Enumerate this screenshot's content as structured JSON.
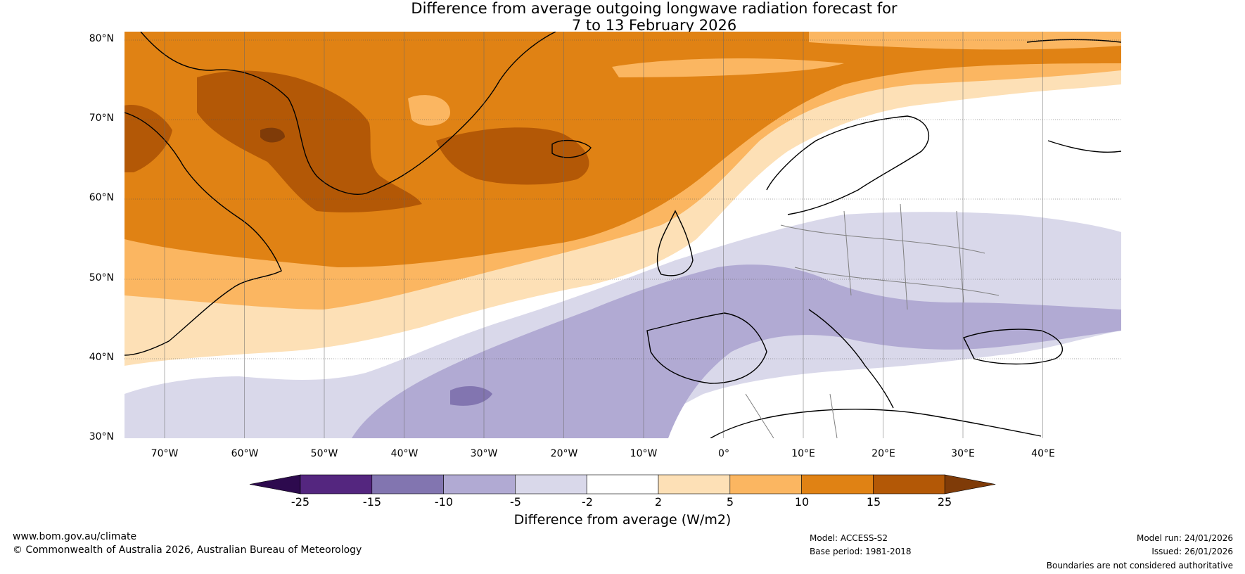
{
  "title": {
    "line1": "Difference from average outgoing longwave radiation forecast for",
    "line2": "7 to 13 February 2026"
  },
  "lat_labels": [
    "80°N",
    "70°N",
    "60°N",
    "50°N",
    "40°N",
    "30°N"
  ],
  "lon_labels": [
    "70°W",
    "60°W",
    "50°W",
    "40°W",
    "30°W",
    "20°W",
    "10°W",
    "0°",
    "10°E",
    "20°E",
    "30°E",
    "40°E"
  ],
  "colorbar": {
    "ticks": [
      "-25",
      "-15",
      "-10",
      "-5",
      "-2",
      "2",
      "5",
      "10",
      "15",
      "25"
    ],
    "colors": [
      "#2d0a4e",
      "#54267f",
      "#8275b0",
      "#b1aad3",
      "#d9d8ea",
      "#ffffff",
      "#fde0b6",
      "#fbb661",
      "#e08214",
      "#b35806",
      "#7f3b08"
    ],
    "label": "Difference from average (W/m2)"
  },
  "footer": {
    "website": "www.bom.gov.au/climate",
    "copyright": "© Commonwealth of Australia 2026, Australian Bureau of Meteorology",
    "model": "Model: ACCESS-S2",
    "base_period": "Base period: 1981-2018",
    "model_run": "Model run: 24/01/2026",
    "issued": "Issued: 26/01/2026",
    "disclaimer": "Boundaries are not considered authoritative"
  }
}
